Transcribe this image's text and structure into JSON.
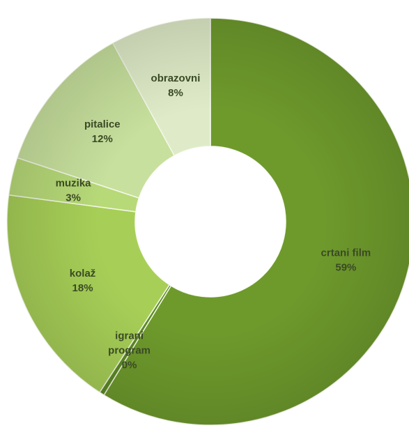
{
  "chart_data": {
    "type": "pie",
    "style": "doughnut",
    "title": "",
    "legend": "none",
    "slices": [
      {
        "category": "crtani film",
        "label_lines": [
          "crtani film"
        ],
        "value": 59,
        "percent_label": "59%",
        "color": "#6e9a2c"
      },
      {
        "category": "igrani program",
        "label_lines": [
          "igrani",
          "program"
        ],
        "value": 0.4,
        "percent_label": "0%",
        "color": "#5d8a24"
      },
      {
        "category": "kolaž",
        "label_lines": [
          "kolaž"
        ],
        "value": 18,
        "percent_label": "18%",
        "color": "#a7cf57"
      },
      {
        "category": "muzika",
        "label_lines": [
          "muzika"
        ],
        "value": 3,
        "percent_label": "3%",
        "color": "#b7d978"
      },
      {
        "category": "pitalice",
        "label_lines": [
          "pitalice"
        ],
        "value": 12,
        "percent_label": "12%",
        "color": "#c7e09d"
      },
      {
        "category": "obrazovni",
        "label_lines": [
          "obrazovni"
        ],
        "value": 8,
        "percent_label": "8%",
        "color": "#dfebc8"
      }
    ]
  }
}
